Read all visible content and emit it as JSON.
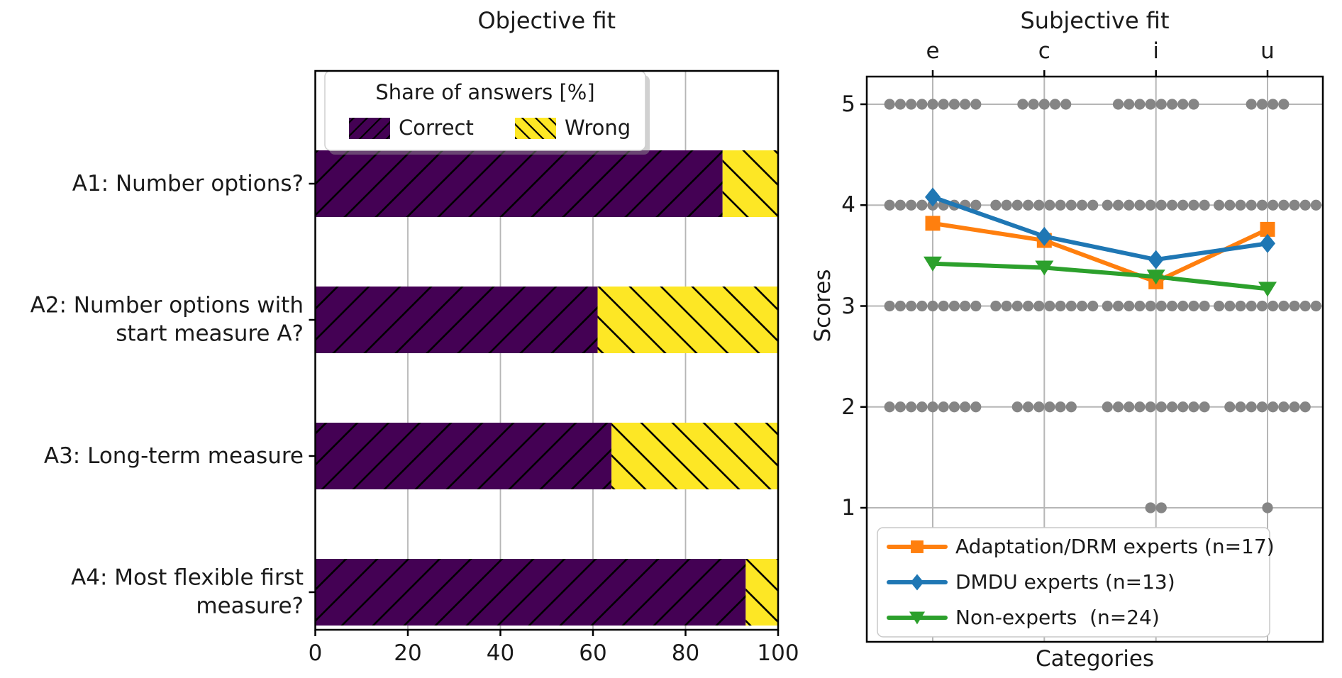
{
  "figure": {
    "background": "#ffffff",
    "grid_color": "#b6b6b6",
    "spine_color": "#000000",
    "text_color": "#1a1a1a"
  },
  "chart_data": [
    {
      "type": "bar",
      "orientation": "horizontal",
      "stacked": true,
      "title": "Objective fit",
      "legend_title": "Share of answers [%]",
      "categories": [
        "A1: Number options?",
        "A2: Number options with\nstart measure A?",
        "A3: Long-term measure",
        "A4: Most flexible first\nmeasure?"
      ],
      "series": [
        {
          "name": "Correct",
          "color": "#440154",
          "hatch": "/",
          "values": [
            88,
            61,
            64,
            93
          ]
        },
        {
          "name": "Wrong",
          "color": "#FDE725",
          "hatch": "\\",
          "values": [
            12,
            39,
            36,
            7
          ]
        }
      ],
      "xlim": [
        0,
        100
      ],
      "x_ticks": [
        0,
        20,
        40,
        60,
        80,
        100
      ],
      "grid": "vertical"
    },
    {
      "type": "line",
      "title": "Subjective fit",
      "xlabel": "Categories",
      "ylabel": "Scores",
      "categories": [
        "e",
        "c",
        "i",
        "u"
      ],
      "y_ticks": [
        1,
        2,
        3,
        4,
        5
      ],
      "ylim": [
        0.4,
        5.3
      ],
      "grid": "both",
      "legend_position": "lower left",
      "series": [
        {
          "name": "Adaptation/DRM experts (n=17)",
          "color": "#ff7f0e",
          "marker": "square",
          "values": [
            3.82,
            3.65,
            3.24,
            3.76
          ]
        },
        {
          "name": "DMDU experts (n=13)",
          "color": "#1f77b4",
          "marker": "diamond",
          "values": [
            4.08,
            3.69,
            3.46,
            3.62
          ]
        },
        {
          "name": "Non-experts  (n=24)",
          "color": "#2ca02c",
          "marker": "triangle-down",
          "values": [
            3.42,
            3.38,
            3.29,
            3.17
          ]
        }
      ],
      "strip_dots": {
        "color": "#858585",
        "counts_by_score": {
          "5": [
            9,
            5,
            8,
            4
          ],
          "4": [
            9,
            10,
            10,
            10
          ],
          "3": [
            9,
            10,
            10,
            10
          ],
          "2": [
            9,
            6,
            10,
            8
          ],
          "1": [
            0,
            0,
            2,
            1
          ]
        }
      }
    }
  ]
}
